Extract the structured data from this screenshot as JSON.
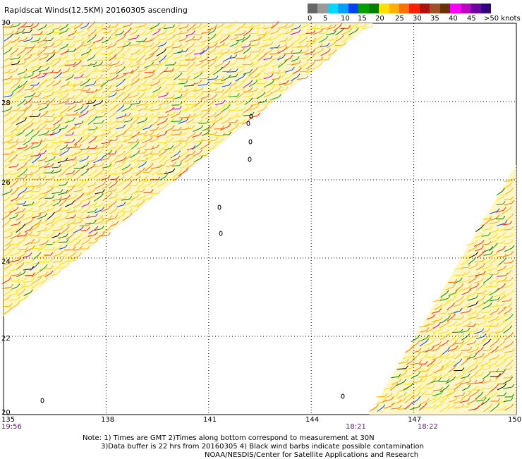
{
  "title": "Rapidscat Winds(12.5KM) 20160305 ascending",
  "legend": {
    "colors": [
      "#666666",
      "#999999",
      "#00d8ff",
      "#00a0ff",
      "#0040ff",
      "#00a000",
      "#008000",
      "#ffe000",
      "#ffb000",
      "#ff7000",
      "#ff2000",
      "#b01010",
      "#a05028",
      "#6a3008",
      "#ff00ff",
      "#c000c0",
      "#7000a0",
      "#300080"
    ],
    "labels": [
      "0",
      "5",
      "10",
      "15",
      "20",
      "25",
      "30",
      "35",
      "40",
      "45",
      ">50 knots"
    ]
  },
  "lat_labels": [
    "30",
    "28",
    "26",
    "24",
    "22",
    "20"
  ],
  "lon_labels": [
    "135",
    "138",
    "141",
    "144",
    "147",
    "150"
  ],
  "time_labels": [
    "19:56",
    "18:21",
    "18:22"
  ],
  "notes": [
    "Note: 1) Times are GMT 2)Times along bottom correspond to measurement at 30N",
    "3)Data buffer is 22 hrs from 20160305 4) Black wind barbs indicate possible contamination",
    "NOAA/NESDIS/Center for Satellite Applications and Research"
  ],
  "map": {
    "lon_range": [
      135,
      150
    ],
    "lat_range": [
      20,
      30
    ],
    "grid_lons": [
      138,
      141,
      144,
      147,
      150
    ],
    "grid_lats": [
      22,
      24,
      26,
      28
    ],
    "swath_left": [
      [
        135,
        30
      ],
      [
        145.8,
        30
      ],
      [
        135,
        22.5
      ]
    ],
    "swath_right": [
      [
        150,
        26.4
      ],
      [
        150,
        20
      ],
      [
        145.7,
        20
      ]
    ],
    "wind_colors": [
      "#ffe000",
      "#ffb000",
      "#ff7000",
      "#ff2000",
      "#008000",
      "#00a000",
      "#0040ff",
      "#c000c0",
      "#000000"
    ]
  }
}
